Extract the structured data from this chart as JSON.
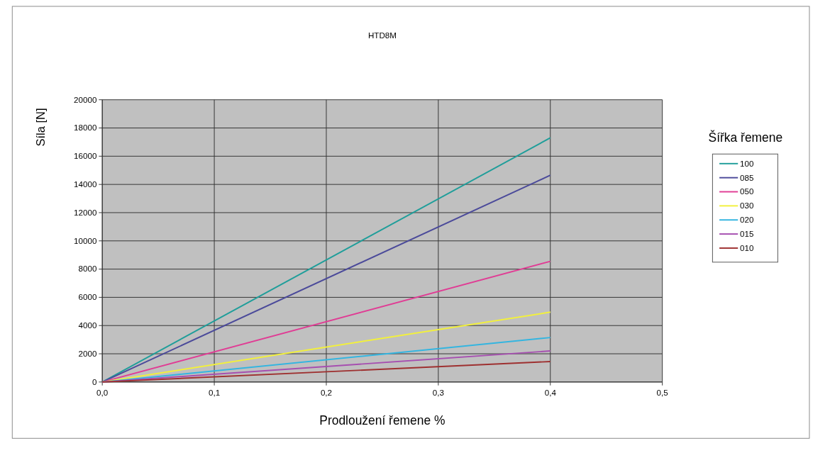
{
  "chart_data": {
    "type": "line",
    "title": "HTD8M",
    "xlabel": "Prodloužení řemene   %",
    "ylabel": "Síla  [N]",
    "legend_title": "Šířka řemene",
    "x": [
      0,
      0.4
    ],
    "series": [
      {
        "name": "100",
        "color": "#1f9e9a",
        "values": [
          0,
          17300
        ]
      },
      {
        "name": "085",
        "color": "#4b4a9a",
        "values": [
          0,
          14650
        ]
      },
      {
        "name": "050",
        "color": "#e03c94",
        "values": [
          0,
          8550
        ]
      },
      {
        "name": "030",
        "color": "#f2f03c",
        "values": [
          0,
          4950
        ]
      },
      {
        "name": "020",
        "color": "#33b5e0",
        "values": [
          0,
          3150
        ]
      },
      {
        "name": "015",
        "color": "#a64fb0",
        "values": [
          0,
          2200
        ]
      },
      {
        "name": "010",
        "color": "#9e3030",
        "values": [
          0,
          1450
        ]
      }
    ],
    "xlim": [
      0,
      0.5
    ],
    "xticks": [
      {
        "value": 0,
        "label": "0,0"
      },
      {
        "value": 0.1,
        "label": "0,1"
      },
      {
        "value": 0.2,
        "label": "0,2"
      },
      {
        "value": 0.3,
        "label": "0,3"
      },
      {
        "value": 0.4,
        "label": "0,4"
      },
      {
        "value": 0.5,
        "label": "0,5"
      }
    ],
    "ylim": [
      0,
      20000
    ],
    "yticks": [
      0,
      2000,
      4000,
      6000,
      8000,
      10000,
      12000,
      14000,
      16000,
      18000,
      20000
    ],
    "grid": true,
    "legend": "right",
    "marker": "none",
    "line_style": "solid"
  }
}
